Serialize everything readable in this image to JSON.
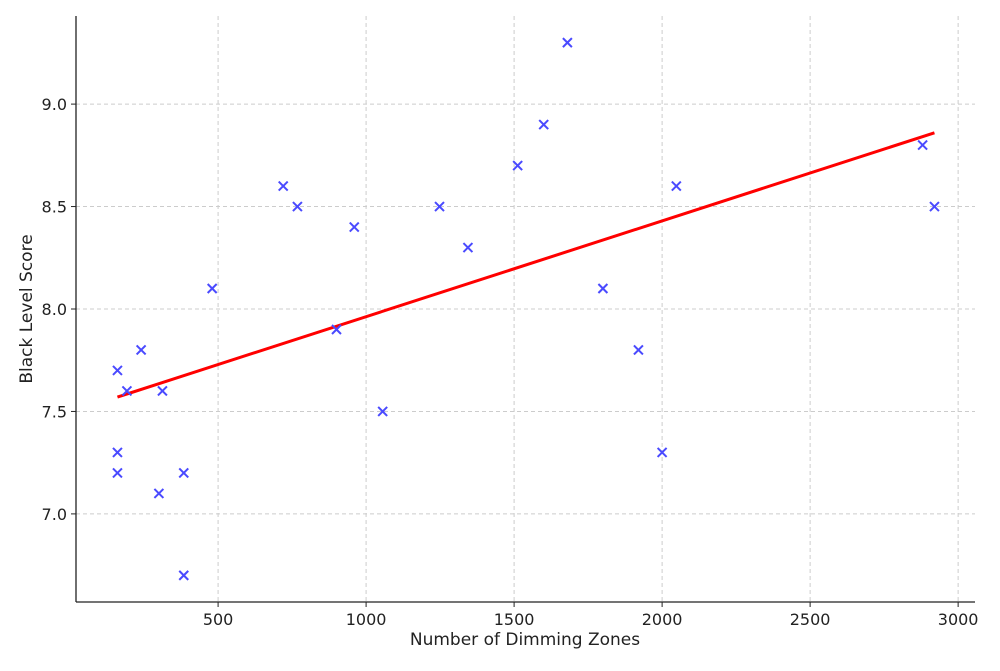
{
  "chart_data": {
    "type": "scatter",
    "title": "",
    "xlabel": "Number of Dimming Zones",
    "ylabel": "Black Level Score",
    "xlim": [
      20,
      3057
    ],
    "ylim": [
      6.57,
      9.43
    ],
    "xticks": [
      500,
      1000,
      1500,
      2000,
      2500,
      3000
    ],
    "xtick_labels": [
      "500",
      "1000",
      "1500",
      "2000",
      "2500",
      "3000"
    ],
    "yticks": [
      7.0,
      7.5,
      8.0,
      8.5,
      9.0
    ],
    "ytick_labels": [
      "7.0",
      "7.5",
      "8.0",
      "8.5",
      "9.0"
    ],
    "grid": true,
    "marker": "x",
    "point_color": "#4a4aff",
    "trend_color": "#ff0000",
    "points": [
      {
        "x": 160,
        "y": 7.7
      },
      {
        "x": 192,
        "y": 7.6
      },
      {
        "x": 240,
        "y": 7.8
      },
      {
        "x": 160,
        "y": 7.3
      },
      {
        "x": 160,
        "y": 7.2
      },
      {
        "x": 312,
        "y": 7.6
      },
      {
        "x": 300,
        "y": 7.1
      },
      {
        "x": 384,
        "y": 7.2
      },
      {
        "x": 384,
        "y": 6.7
      },
      {
        "x": 480,
        "y": 8.1
      },
      {
        "x": 720,
        "y": 8.6
      },
      {
        "x": 768,
        "y": 8.5
      },
      {
        "x": 900,
        "y": 7.9
      },
      {
        "x": 960,
        "y": 8.4
      },
      {
        "x": 1056,
        "y": 7.5
      },
      {
        "x": 1248,
        "y": 8.5
      },
      {
        "x": 1344,
        "y": 8.3
      },
      {
        "x": 1512,
        "y": 8.7
      },
      {
        "x": 1600,
        "y": 8.9
      },
      {
        "x": 1680,
        "y": 9.3
      },
      {
        "x": 1800,
        "y": 8.1
      },
      {
        "x": 1920,
        "y": 7.8
      },
      {
        "x": 2000,
        "y": 7.3
      },
      {
        "x": 2048,
        "y": 8.6
      },
      {
        "x": 2880,
        "y": 8.8
      },
      {
        "x": 2920,
        "y": 8.5
      }
    ],
    "trend_line": [
      {
        "x": 160,
        "y": 7.57
      },
      {
        "x": 2920,
        "y": 8.86
      }
    ]
  }
}
